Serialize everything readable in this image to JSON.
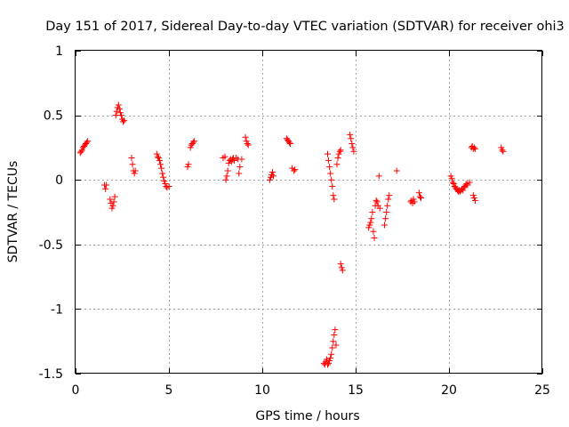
{
  "chart_data": {
    "type": "scatter",
    "title": "Day 151 of 2017, Sidereal Day-to-day VTEC variation (SDTVAR) for receiver ohi3",
    "xlabel": "GPS time / hours",
    "ylabel": "SDTVAR / TECUs",
    "xlim": [
      0,
      25
    ],
    "ylim": [
      -1.5,
      1
    ],
    "xticks": [
      0,
      5,
      10,
      15,
      20,
      25
    ],
    "xtick_labels": [
      "0",
      "5",
      "10",
      "15",
      "20",
      "25"
    ],
    "yticks": [
      1,
      0.5,
      0,
      -0.5,
      -1,
      -1.5
    ],
    "ytick_labels": [
      "1",
      "0.5",
      "0",
      "-0.5",
      "-1",
      "-1.5"
    ],
    "grid": true,
    "marker": "plus",
    "color": "#ff0000",
    "series": [
      {
        "name": "SDTVAR",
        "points": [
          [
            0.25,
            0.21
          ],
          [
            0.3,
            0.22
          ],
          [
            0.35,
            0.23
          ],
          [
            0.4,
            0.25
          ],
          [
            0.45,
            0.26
          ],
          [
            0.5,
            0.27
          ],
          [
            0.55,
            0.28
          ],
          [
            0.6,
            0.29
          ],
          [
            0.65,
            0.3
          ],
          [
            1.55,
            -0.04
          ],
          [
            1.6,
            -0.07
          ],
          [
            1.65,
            -0.04
          ],
          [
            1.85,
            -0.15
          ],
          [
            1.9,
            -0.18
          ],
          [
            1.95,
            -0.22
          ],
          [
            2.0,
            -0.2
          ],
          [
            2.05,
            -0.17
          ],
          [
            2.1,
            -0.13
          ],
          [
            2.15,
            0.5
          ],
          [
            2.2,
            0.53
          ],
          [
            2.25,
            0.56
          ],
          [
            2.3,
            0.58
          ],
          [
            2.35,
            0.55
          ],
          [
            2.4,
            0.52
          ],
          [
            2.45,
            0.5
          ],
          [
            2.5,
            0.47
          ],
          [
            2.55,
            0.45
          ],
          [
            2.6,
            0.46
          ],
          [
            3.0,
            0.17
          ],
          [
            3.05,
            0.12
          ],
          [
            3.1,
            0.07
          ],
          [
            3.15,
            0.05
          ],
          [
            3.2,
            0.07
          ],
          [
            4.35,
            0.2
          ],
          [
            4.4,
            0.18
          ],
          [
            4.45,
            0.17
          ],
          [
            4.5,
            0.15
          ],
          [
            4.55,
            0.12
          ],
          [
            4.6,
            0.09
          ],
          [
            4.65,
            0.05
          ],
          [
            4.7,
            0.02
          ],
          [
            4.75,
            -0.01
          ],
          [
            4.8,
            -0.03
          ],
          [
            4.85,
            -0.05
          ],
          [
            4.9,
            -0.06
          ],
          [
            5.0,
            -0.05
          ],
          [
            6.0,
            0.1
          ],
          [
            6.05,
            0.12
          ],
          [
            6.15,
            0.25
          ],
          [
            6.2,
            0.27
          ],
          [
            6.25,
            0.28
          ],
          [
            6.3,
            0.29
          ],
          [
            6.35,
            0.3
          ],
          [
            7.9,
            0.17
          ],
          [
            8.0,
            0.18
          ],
          [
            8.05,
            0.0
          ],
          [
            8.1,
            0.03
          ],
          [
            8.15,
            0.07
          ],
          [
            8.2,
            0.13
          ],
          [
            8.25,
            0.15
          ],
          [
            8.3,
            0.16
          ],
          [
            8.35,
            0.14
          ],
          [
            8.4,
            0.16
          ],
          [
            8.45,
            0.17
          ],
          [
            8.5,
            0.15
          ],
          [
            8.6,
            0.17
          ],
          [
            8.7,
            0.16
          ],
          [
            8.75,
            0.05
          ],
          [
            8.8,
            0.1
          ],
          [
            8.9,
            0.16
          ],
          [
            9.1,
            0.33
          ],
          [
            9.15,
            0.3
          ],
          [
            9.2,
            0.28
          ],
          [
            9.25,
            0.27
          ],
          [
            10.4,
            0.0
          ],
          [
            10.45,
            0.02
          ],
          [
            10.5,
            0.04
          ],
          [
            10.55,
            0.06
          ],
          [
            10.6,
            0.03
          ],
          [
            11.3,
            0.32
          ],
          [
            11.35,
            0.31
          ],
          [
            11.4,
            0.3
          ],
          [
            11.45,
            0.29
          ],
          [
            11.5,
            0.28
          ],
          [
            11.6,
            0.09
          ],
          [
            11.7,
            0.07
          ],
          [
            11.75,
            0.08
          ],
          [
            13.3,
            -1.42
          ],
          [
            13.35,
            -1.43
          ],
          [
            13.4,
            -1.41
          ],
          [
            13.45,
            -1.39
          ],
          [
            13.5,
            -1.43
          ],
          [
            13.55,
            -1.42
          ],
          [
            13.6,
            -1.4
          ],
          [
            13.65,
            -1.38
          ],
          [
            13.7,
            -1.35
          ],
          [
            13.75,
            -1.3
          ],
          [
            13.8,
            -1.25
          ],
          [
            13.85,
            -1.2
          ],
          [
            13.9,
            -1.16
          ],
          [
            13.95,
            -1.28
          ],
          [
            13.5,
            0.2
          ],
          [
            13.55,
            0.15
          ],
          [
            13.6,
            0.1
          ],
          [
            13.65,
            0.05
          ],
          [
            13.7,
            0.0
          ],
          [
            13.75,
            -0.05
          ],
          [
            13.8,
            -0.12
          ],
          [
            13.85,
            -0.15
          ],
          [
            14.0,
            0.12
          ],
          [
            14.05,
            0.17
          ],
          [
            14.1,
            0.2
          ],
          [
            14.15,
            0.22
          ],
          [
            14.2,
            0.23
          ],
          [
            14.2,
            -0.65
          ],
          [
            14.25,
            -0.68
          ],
          [
            14.3,
            -0.7
          ],
          [
            14.7,
            0.35
          ],
          [
            14.75,
            0.32
          ],
          [
            14.8,
            0.28
          ],
          [
            14.85,
            0.25
          ],
          [
            14.9,
            0.22
          ],
          [
            15.7,
            -0.37
          ],
          [
            15.75,
            -0.35
          ],
          [
            15.8,
            -0.33
          ],
          [
            15.85,
            -0.3
          ],
          [
            15.9,
            -0.25
          ],
          [
            15.95,
            -0.4
          ],
          [
            16.0,
            -0.45
          ],
          [
            16.05,
            -0.2
          ],
          [
            16.1,
            -0.16
          ],
          [
            16.15,
            -0.17
          ],
          [
            16.2,
            -0.2
          ],
          [
            16.25,
            0.03
          ],
          [
            16.3,
            -0.22
          ],
          [
            16.55,
            -0.35
          ],
          [
            16.6,
            -0.3
          ],
          [
            16.65,
            -0.25
          ],
          [
            16.7,
            -0.2
          ],
          [
            16.75,
            -0.15
          ],
          [
            16.8,
            -0.12
          ],
          [
            17.2,
            0.07
          ],
          [
            17.95,
            -0.17
          ],
          [
            18.0,
            -0.16
          ],
          [
            18.05,
            -0.18
          ],
          [
            18.1,
            -0.15
          ],
          [
            18.15,
            -0.17
          ],
          [
            18.4,
            -0.1
          ],
          [
            18.45,
            -0.13
          ],
          [
            18.5,
            -0.14
          ],
          [
            20.1,
            0.03
          ],
          [
            20.15,
            0.01
          ],
          [
            20.2,
            -0.02
          ],
          [
            20.25,
            -0.03
          ],
          [
            20.3,
            -0.05
          ],
          [
            20.35,
            -0.06
          ],
          [
            20.4,
            -0.07
          ],
          [
            20.45,
            -0.08
          ],
          [
            20.5,
            -0.09
          ],
          [
            20.55,
            -0.08
          ],
          [
            20.6,
            -0.09
          ],
          [
            20.65,
            -0.08
          ],
          [
            20.7,
            -0.07
          ],
          [
            20.75,
            -0.08
          ],
          [
            20.8,
            -0.06
          ],
          [
            20.85,
            -0.05
          ],
          [
            20.9,
            -0.04
          ],
          [
            20.95,
            -0.03
          ],
          [
            21.0,
            -0.04
          ],
          [
            21.1,
            -0.02
          ],
          [
            21.2,
            0.25
          ],
          [
            21.25,
            0.26
          ],
          [
            21.3,
            0.24
          ],
          [
            21.35,
            0.25
          ],
          [
            21.4,
            0.24
          ],
          [
            21.3,
            -0.12
          ],
          [
            21.35,
            -0.14
          ],
          [
            21.4,
            -0.16
          ],
          [
            22.8,
            0.25
          ],
          [
            22.85,
            0.23
          ],
          [
            22.9,
            0.22
          ]
        ]
      }
    ]
  }
}
